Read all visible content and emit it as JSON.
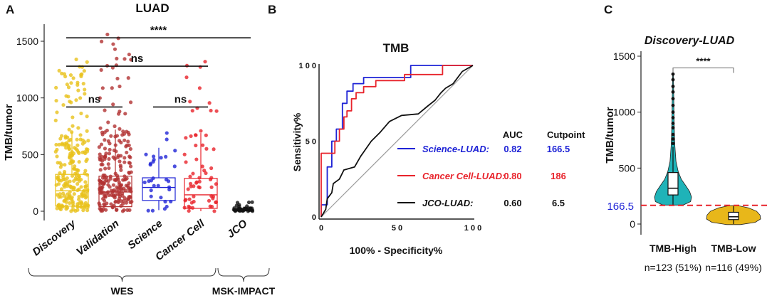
{
  "panels": {
    "A": {
      "letter": "A",
      "title": "LUAD",
      "ylabel": "TMB/tumor",
      "yticks": [
        0,
        500,
        1000,
        1500
      ],
      "ylim": [
        -50,
        1650
      ],
      "categories": [
        "Discovery",
        "Validation",
        "Science",
        "Cancer Cell",
        "JCO"
      ],
      "colors": [
        "#e8c21b",
        "#b23232",
        "#1f24d6",
        "#e8232b",
        "#111111"
      ],
      "box_stats": [
        {
          "q1": 45,
          "median": 180,
          "q3": 325,
          "lo": 0,
          "hi": 700
        },
        {
          "q1": 40,
          "median": 170,
          "q3": 310,
          "lo": 0,
          "hi": 720
        },
        {
          "q1": 95,
          "median": 210,
          "q3": 295,
          "lo": 10,
          "hi": 560
        },
        {
          "q1": 25,
          "median": 145,
          "q3": 290,
          "lo": 0,
          "hi": 690
        },
        {
          "q1": 3,
          "median": 8,
          "q3": 18,
          "lo": 0,
          "hi": 40
        }
      ],
      "point_counts": [
        239,
        228,
        31,
        64,
        46
      ],
      "point_max": [
        1340,
        1560,
        690,
        1320,
        80
      ],
      "comparisons": [
        {
          "from": 0,
          "to": 4,
          "label": "****",
          "y": 1530
        },
        {
          "from": 0,
          "to": 3,
          "label": "ns",
          "y": 1280
        },
        {
          "from": 0,
          "to": 1,
          "label": "ns",
          "y": 920
        },
        {
          "from": 2,
          "to": 3,
          "label": "ns",
          "y": 920
        }
      ],
      "groups": [
        {
          "label": "WES",
          "from": 0,
          "to": 3
        },
        {
          "label": "MSK-IMPACT",
          "from": 4,
          "to": 4
        }
      ]
    },
    "B": {
      "letter": "B",
      "title": "TMB",
      "xlabel": "100% - Specificity%",
      "ylabel": "Sensitivity%",
      "xticks": [
        "0",
        "5 0",
        "1 0 0"
      ],
      "yticks": [
        "0",
        "5 0",
        "1 0 0"
      ],
      "header_auc": "AUC",
      "header_cut": "Cutpoint",
      "legend": [
        {
          "name": "Science-LUAD:",
          "auc": "0.82",
          "cutpoint": "166.5",
          "color": "#1f24d6"
        },
        {
          "name": "Cancer Cell-LUAD:",
          "auc": "0.80",
          "cutpoint": "186",
          "color": "#e8232b"
        },
        {
          "name": "JCO-LUAD:",
          "auc": "0.60",
          "cutpoint": "6.5",
          "color": "#111111"
        }
      ]
    },
    "C": {
      "letter": "C",
      "title": "Discovery-LUAD",
      "ylabel": "TMB/tumor",
      "yticks": [
        0,
        500,
        1000,
        1500
      ],
      "ylim": [
        -70,
        1620
      ],
      "categories": [
        "TMB-High",
        "TMB-Low"
      ],
      "counts": [
        "n=123 (51%)",
        "n=116 (49%)"
      ],
      "colors": [
        "#1fb3b8",
        "#e8b71a"
      ],
      "cutoff": 166.5,
      "cutoff_label": "166.5",
      "significance": "****",
      "box_stats": [
        {
          "q1": 260,
          "median": 320,
          "q3": 460,
          "lo": 170,
          "hi": 690
        },
        {
          "q1": 40,
          "median": 65,
          "q3": 105,
          "lo": 0,
          "hi": 160
        }
      ]
    }
  },
  "chart_data": [
    {
      "type": "box",
      "title": "LUAD",
      "xlabel": "",
      "ylabel": "TMB/tumor",
      "ylim": [
        0,
        1600
      ],
      "categories": [
        "Discovery",
        "Validation",
        "Science",
        "Cancer Cell",
        "JCO"
      ],
      "series": [
        {
          "name": "median",
          "values": [
            180,
            170,
            210,
            145,
            8
          ]
        },
        {
          "name": "q1",
          "values": [
            45,
            40,
            95,
            25,
            3
          ]
        },
        {
          "name": "q3",
          "values": [
            325,
            310,
            295,
            290,
            18
          ]
        },
        {
          "name": "max",
          "values": [
            1340,
            1560,
            690,
            1320,
            80
          ]
        }
      ],
      "annotations": [
        "****",
        "ns",
        "ns",
        "ns",
        "WES",
        "MSK-IMPACT"
      ]
    },
    {
      "type": "line",
      "title": "TMB",
      "xlabel": "100% - Specificity%",
      "ylabel": "Sensitivity%",
      "xlim": [
        0,
        100
      ],
      "ylim": [
        0,
        100
      ],
      "series": [
        {
          "name": "Science-LUAD",
          "auc": 0.82,
          "cutpoint": 166.5,
          "x": [
            0,
            0,
            4,
            4,
            7,
            7,
            10,
            10,
            14,
            14,
            17,
            17,
            21,
            21,
            28,
            28,
            59,
            59,
            100
          ],
          "y": [
            0,
            8,
            8,
            33,
            33,
            50,
            50,
            58,
            58,
            75,
            75,
            83,
            83,
            88,
            88,
            92,
            92,
            100,
            100
          ]
        },
        {
          "name": "Cancer Cell-LUAD",
          "auc": 0.8,
          "cutpoint": 186,
          "x": [
            0,
            0,
            9,
            9,
            12,
            12,
            15,
            15,
            17,
            17,
            20,
            20,
            23,
            23,
            28,
            28,
            36,
            36,
            55,
            55,
            80,
            80,
            100
          ],
          "y": [
            0,
            42,
            42,
            50,
            50,
            58,
            58,
            66,
            66,
            70,
            70,
            78,
            78,
            82,
            82,
            86,
            86,
            90,
            90,
            94,
            94,
            100,
            100
          ]
        },
        {
          "name": "JCO-LUAD",
          "auc": 0.6,
          "cutpoint": 6.5,
          "x": [
            0,
            3,
            4,
            7,
            8,
            12,
            15,
            22,
            26,
            33,
            39,
            45,
            53,
            64,
            70,
            75,
            79,
            82,
            87,
            93,
            100
          ],
          "y": [
            0,
            5,
            12,
            16,
            22,
            25,
            31,
            33,
            40,
            50,
            56,
            63,
            67,
            68,
            73,
            77,
            82,
            85,
            88,
            96,
            100
          ]
        },
        {
          "name": "reference",
          "x": [
            0,
            100
          ],
          "y": [
            0,
            100
          ]
        }
      ]
    },
    {
      "type": "violin",
      "title": "Discovery-LUAD",
      "xlabel": "",
      "ylabel": "TMB/tumor",
      "ylim": [
        0,
        1600
      ],
      "categories": [
        "TMB-High",
        "TMB-Low"
      ],
      "n": [
        123,
        116
      ],
      "percent": [
        51,
        49
      ],
      "cutoff": 166.5,
      "series": [
        {
          "name": "median",
          "values": [
            320,
            65
          ]
        },
        {
          "name": "max",
          "values": [
            1340,
            160
          ]
        }
      ],
      "annotations": [
        "****",
        "166.5"
      ]
    }
  ]
}
